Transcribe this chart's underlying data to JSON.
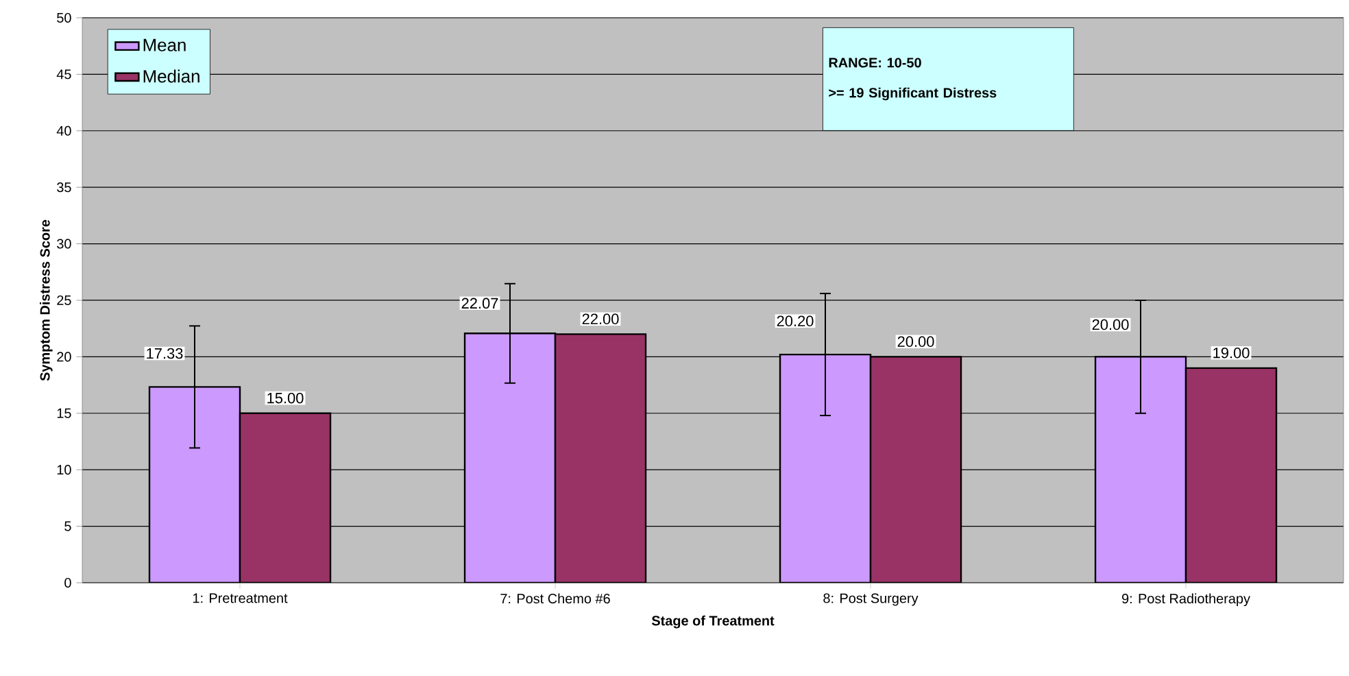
{
  "chart_data": {
    "type": "bar",
    "xlabel": "Stage of Treatment",
    "ylabel": "Symptom Distress Score",
    "categories": [
      "1: Pretreatment",
      "7: Post Chemo #6",
      "8: Post Surgery",
      "9: Post Radiotherapy"
    ],
    "series": [
      {
        "name": "Mean",
        "color": "#cc99ff",
        "values": [
          17.33,
          22.07,
          20.2,
          20.0
        ],
        "errors": [
          5.4,
          4.4,
          5.4,
          5.0
        ],
        "value_labels": [
          "17.33",
          "22.07",
          "20.20",
          "20.00"
        ]
      },
      {
        "name": "Median",
        "color": "#993366",
        "values": [
          15.0,
          22.0,
          20.0,
          19.0
        ],
        "value_labels": [
          "15.00",
          "22.00",
          "20.00",
          "19.00"
        ]
      }
    ],
    "ylim": [
      0,
      50
    ],
    "yticks": [
      0,
      5,
      10,
      15,
      20,
      25,
      30,
      35,
      40,
      45,
      50
    ],
    "grid": "y",
    "legend": "top left",
    "annotations": [
      "RANGE: 10-50",
      ">= 19 Significant Distress"
    ]
  }
}
